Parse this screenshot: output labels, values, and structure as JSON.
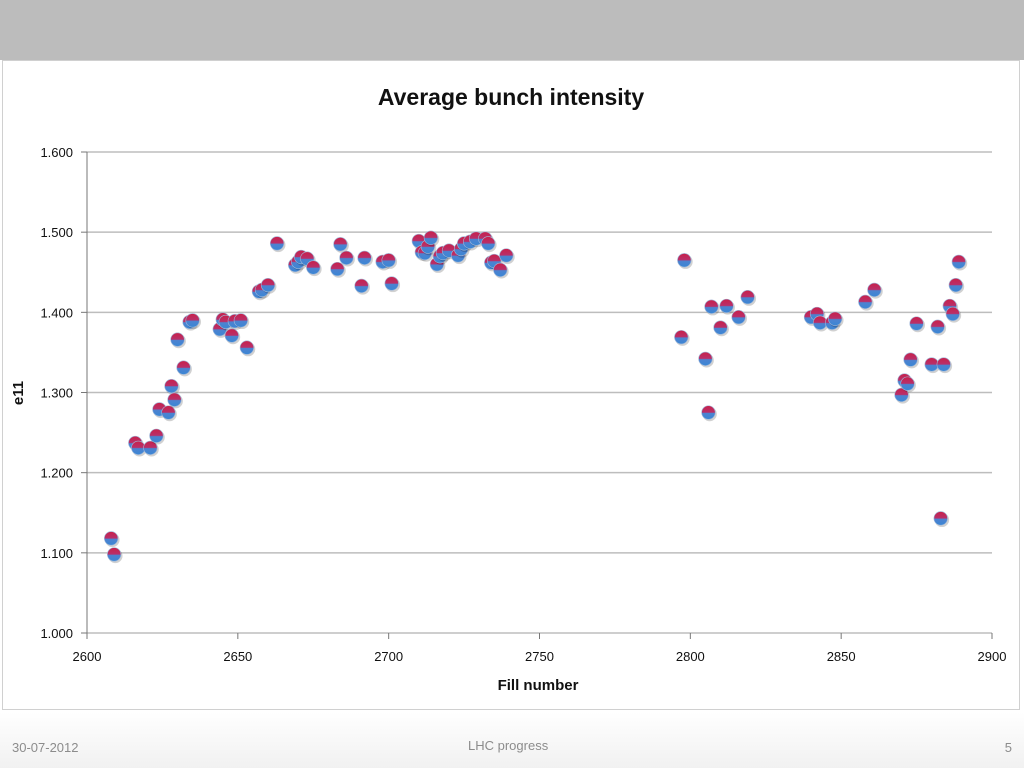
{
  "footer": {
    "date": "30-07-2012",
    "title": "LHC progress",
    "page": "5"
  },
  "colors": {
    "marker_top": "#c8204a",
    "marker_bottom": "#3a86d4",
    "gridline": "#bdbdbd",
    "header_band": "#bcbcbc"
  },
  "chart_data": {
    "type": "scatter",
    "title": "Average bunch intensity",
    "xlabel": "Fill number",
    "ylabel": "e11",
    "xlim": [
      2600,
      2900
    ],
    "ylim": [
      1.0,
      1.6
    ],
    "xticks": [
      "2600",
      "2650",
      "2700",
      "2750",
      "2800",
      "2850",
      "2900"
    ],
    "yticks": [
      "1.000",
      "1.100",
      "1.200",
      "1.300",
      "1.400",
      "1.500",
      "1.600"
    ],
    "grid": true,
    "legend": "none",
    "points": [
      [
        2608,
        1.118
      ],
      [
        2609,
        1.098
      ],
      [
        2616,
        1.237
      ],
      [
        2617,
        1.231
      ],
      [
        2621,
        1.231
      ],
      [
        2623,
        1.246
      ],
      [
        2624,
        1.279
      ],
      [
        2627,
        1.275
      ],
      [
        2628,
        1.308
      ],
      [
        2629,
        1.291
      ],
      [
        2630,
        1.366
      ],
      [
        2632,
        1.331
      ],
      [
        2634,
        1.388
      ],
      [
        2635,
        1.39
      ],
      [
        2644,
        1.379
      ],
      [
        2645,
        1.391
      ],
      [
        2646,
        1.388
      ],
      [
        2648,
        1.371
      ],
      [
        2649,
        1.389
      ],
      [
        2651,
        1.39
      ],
      [
        2653,
        1.356
      ],
      [
        2657,
        1.426
      ],
      [
        2658,
        1.428
      ],
      [
        2660,
        1.434
      ],
      [
        2663,
        1.486
      ],
      [
        2669,
        1.459
      ],
      [
        2670,
        1.463
      ],
      [
        2671,
        1.469
      ],
      [
        2673,
        1.467
      ],
      [
        2675,
        1.456
      ],
      [
        2683,
        1.454
      ],
      [
        2684,
        1.485
      ],
      [
        2686,
        1.468
      ],
      [
        2691,
        1.433
      ],
      [
        2692,
        1.468
      ],
      [
        2698,
        1.463
      ],
      [
        2700,
        1.465
      ],
      [
        2701,
        1.436
      ],
      [
        2710,
        1.489
      ],
      [
        2711,
        1.475
      ],
      [
        2712,
        1.474
      ],
      [
        2713,
        1.482
      ],
      [
        2714,
        1.493
      ],
      [
        2716,
        1.46
      ],
      [
        2717,
        1.47
      ],
      [
        2718,
        1.474
      ],
      [
        2720,
        1.477
      ],
      [
        2723,
        1.471
      ],
      [
        2724,
        1.479
      ],
      [
        2725,
        1.486
      ],
      [
        2727,
        1.488
      ],
      [
        2729,
        1.492
      ],
      [
        2732,
        1.492
      ],
      [
        2733,
        1.486
      ],
      [
        2734,
        1.462
      ],
      [
        2735,
        1.464
      ],
      [
        2737,
        1.453
      ],
      [
        2739,
        1.471
      ],
      [
        2797,
        1.369
      ],
      [
        2798,
        1.465
      ],
      [
        2805,
        1.342
      ],
      [
        2806,
        1.275
      ],
      [
        2807,
        1.407
      ],
      [
        2810,
        1.381
      ],
      [
        2812,
        1.408
      ],
      [
        2816,
        1.394
      ],
      [
        2819,
        1.419
      ],
      [
        2840,
        1.394
      ],
      [
        2842,
        1.398
      ],
      [
        2843,
        1.387
      ],
      [
        2847,
        1.387
      ],
      [
        2848,
        1.392
      ],
      [
        2858,
        1.413
      ],
      [
        2861,
        1.428
      ],
      [
        2870,
        1.297
      ],
      [
        2871,
        1.315
      ],
      [
        2872,
        1.311
      ],
      [
        2873,
        1.341
      ],
      [
        2875,
        1.386
      ],
      [
        2880,
        1.335
      ],
      [
        2882,
        1.382
      ],
      [
        2883,
        1.143
      ],
      [
        2884,
        1.335
      ],
      [
        2886,
        1.408
      ],
      [
        2887,
        1.398
      ],
      [
        2888,
        1.434
      ],
      [
        2889,
        1.463
      ]
    ]
  }
}
